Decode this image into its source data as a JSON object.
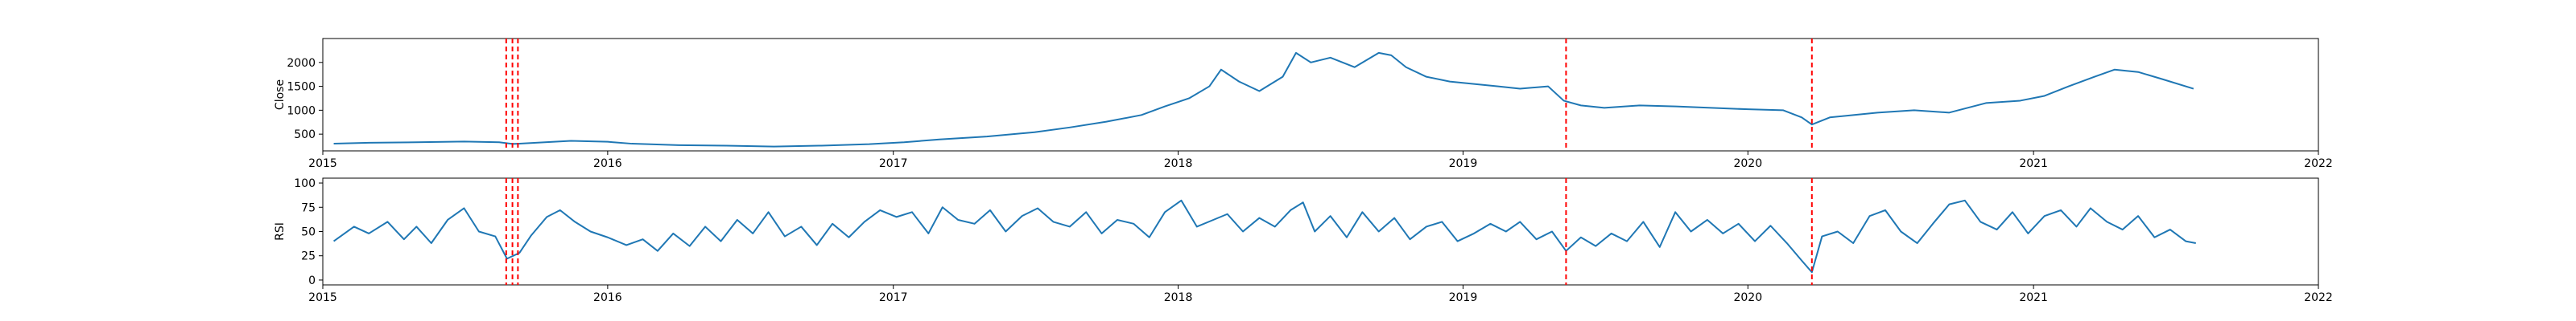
{
  "chart_data": [
    {
      "type": "line",
      "ylabel": "Close",
      "xlabel": "",
      "title": "",
      "x_range": [
        "2015-01-01",
        "2022-01-01"
      ],
      "ylim": [
        150,
        2500
      ],
      "x_ticks": [
        "2015",
        "2016",
        "2017",
        "2018",
        "2019",
        "2020",
        "2021",
        "2022"
      ],
      "y_ticks": [
        500,
        1000,
        1500,
        2000
      ],
      "grid": false,
      "line_color": "#1f77b4",
      "series": [
        {
          "x": [
            "2015-01-15",
            "2015-03-01",
            "2015-05-01",
            "2015-07-01",
            "2015-08-15",
            "2015-09-01",
            "2015-09-10",
            "2015-10-01",
            "2015-11-15",
            "2016-01-01",
            "2016-02-01",
            "2016-04-01",
            "2016-06-01",
            "2016-08-01",
            "2016-10-01",
            "2016-12-01",
            "2017-01-15",
            "2017-03-01",
            "2017-05-01",
            "2017-07-01",
            "2017-08-15",
            "2017-10-01",
            "2017-11-15",
            "2017-12-15",
            "2018-01-15",
            "2018-02-10",
            "2018-02-25",
            "2018-03-20",
            "2018-04-15",
            "2018-05-15",
            "2018-06-01",
            "2018-06-20",
            "2018-07-15",
            "2018-08-15",
            "2018-09-15",
            "2018-10-01",
            "2018-10-20",
            "2018-11-15",
            "2018-12-15",
            "2019-01-15",
            "2019-02-15",
            "2019-03-15",
            "2019-04-20",
            "2019-05-10",
            "2019-06-01",
            "2019-07-01",
            "2019-08-15",
            "2019-10-01",
            "2019-11-15",
            "2020-01-01",
            "2020-02-15",
            "2020-03-10",
            "2020-03-23",
            "2020-04-15",
            "2020-05-15",
            "2020-06-15",
            "2020-08-01",
            "2020-09-15",
            "2020-11-01",
            "2020-12-15",
            "2021-01-15",
            "2021-02-15",
            "2021-03-20",
            "2021-04-15",
            "2021-05-15",
            "2021-06-15",
            "2021-07-25"
          ],
          "values": [
            300,
            320,
            330,
            345,
            330,
            295,
            300,
            320,
            360,
            340,
            300,
            270,
            260,
            240,
            260,
            290,
            330,
            390,
            450,
            540,
            640,
            760,
            900,
            1080,
            1250,
            1500,
            1850,
            1600,
            1400,
            1700,
            2200,
            2000,
            2100,
            1900,
            2200,
            2150,
            1900,
            1700,
            1600,
            1550,
            1500,
            1450,
            1500,
            1200,
            1100,
            1050,
            1100,
            1080,
            1050,
            1020,
            1000,
            850,
            700,
            850,
            900,
            950,
            1000,
            950,
            1150,
            1200,
            1300,
            1500,
            1700,
            1850,
            1800,
            1650,
            1450
          ]
        }
      ],
      "vlines": [
        "2015-08-24",
        "2015-09-01",
        "2015-09-08",
        "2019-05-13",
        "2020-03-23"
      ],
      "vline_color": "#ff0000"
    },
    {
      "type": "line",
      "ylabel": "RSI",
      "xlabel": "",
      "title": "",
      "x_range": [
        "2015-01-01",
        "2022-01-01"
      ],
      "ylim": [
        -5,
        105
      ],
      "x_ticks": [
        "2015",
        "2016",
        "2017",
        "2018",
        "2019",
        "2020",
        "2021",
        "2022"
      ],
      "y_ticks": [
        0,
        25,
        50,
        75,
        100
      ],
      "grid": false,
      "line_color": "#1f77b4",
      "series": [
        {
          "x": [
            "2015-01-15",
            "2015-02-10",
            "2015-03-01",
            "2015-03-25",
            "2015-04-15",
            "2015-05-01",
            "2015-05-20",
            "2015-06-10",
            "2015-07-01",
            "2015-07-20",
            "2015-08-10",
            "2015-08-25",
            "2015-09-10",
            "2015-09-25",
            "2015-10-15",
            "2015-11-01",
            "2015-11-20",
            "2015-12-10",
            "2016-01-01",
            "2016-01-25",
            "2016-02-15",
            "2016-03-05",
            "2016-03-25",
            "2016-04-15",
            "2016-05-05",
            "2016-05-25",
            "2016-06-15",
            "2016-07-05",
            "2016-07-25",
            "2016-08-15",
            "2016-09-05",
            "2016-09-25",
            "2016-10-15",
            "2016-11-05",
            "2016-11-25",
            "2016-12-15",
            "2017-01-05",
            "2017-01-25",
            "2017-02-15",
            "2017-03-05",
            "2017-03-25",
            "2017-04-15",
            "2017-05-05",
            "2017-05-25",
            "2017-06-15",
            "2017-07-05",
            "2017-07-25",
            "2017-08-15",
            "2017-09-05",
            "2017-09-25",
            "2017-10-15",
            "2017-11-05",
            "2017-11-25",
            "2017-12-15",
            "2018-01-05",
            "2018-01-25",
            "2018-02-15",
            "2018-03-05",
            "2018-03-25",
            "2018-04-15",
            "2018-05-05",
            "2018-05-25",
            "2018-06-10",
            "2018-06-25",
            "2018-07-15",
            "2018-08-05",
            "2018-08-25",
            "2018-09-15",
            "2018-10-05",
            "2018-10-25",
            "2018-11-15",
            "2018-12-05",
            "2018-12-25",
            "2019-01-15",
            "2019-02-05",
            "2019-02-25",
            "2019-03-15",
            "2019-04-05",
            "2019-04-25",
            "2019-05-13",
            "2019-06-01",
            "2019-06-20",
            "2019-07-10",
            "2019-07-30",
            "2019-08-20",
            "2019-09-10",
            "2019-09-30",
            "2019-10-20",
            "2019-11-10",
            "2019-11-30",
            "2019-12-20",
            "2020-01-10",
            "2020-01-30",
            "2020-02-20",
            "2020-03-10",
            "2020-03-23",
            "2020-04-05",
            "2020-04-25",
            "2020-05-15",
            "2020-06-05",
            "2020-06-25",
            "2020-07-15",
            "2020-08-05",
            "2020-08-25",
            "2020-09-15",
            "2020-10-05",
            "2020-10-25",
            "2020-11-15",
            "2020-12-05",
            "2020-12-25",
            "2021-01-15",
            "2021-02-05",
            "2021-02-25",
            "2021-03-15",
            "2021-04-05",
            "2021-04-25",
            "2021-05-15",
            "2021-06-05",
            "2021-06-25",
            "2021-07-15",
            "2021-07-28"
          ],
          "values": [
            40,
            55,
            48,
            60,
            42,
            55,
            38,
            62,
            74,
            50,
            45,
            22,
            28,
            46,
            65,
            72,
            60,
            50,
            44,
            36,
            42,
            30,
            48,
            35,
            55,
            40,
            62,
            48,
            70,
            45,
            55,
            36,
            58,
            44,
            60,
            72,
            65,
            70,
            48,
            75,
            62,
            58,
            72,
            50,
            66,
            74,
            60,
            55,
            70,
            48,
            62,
            58,
            44,
            70,
            82,
            55,
            62,
            68,
            50,
            64,
            55,
            72,
            80,
            50,
            66,
            44,
            70,
            50,
            64,
            42,
            55,
            60,
            40,
            48,
            58,
            50,
            60,
            42,
            50,
            30,
            44,
            35,
            48,
            40,
            60,
            34,
            70,
            50,
            62,
            48,
            58,
            40,
            56,
            38,
            20,
            8,
            45,
            50,
            38,
            66,
            72,
            50,
            38,
            58,
            78,
            82,
            60,
            52,
            70,
            48,
            66,
            72,
            55,
            74,
            60,
            52,
            66,
            44,
            52,
            40,
            38
          ]
        }
      ],
      "vlines": [
        "2015-08-24",
        "2015-09-01",
        "2015-09-08",
        "2019-05-13",
        "2020-03-23"
      ],
      "vline_color": "#ff0000"
    }
  ]
}
